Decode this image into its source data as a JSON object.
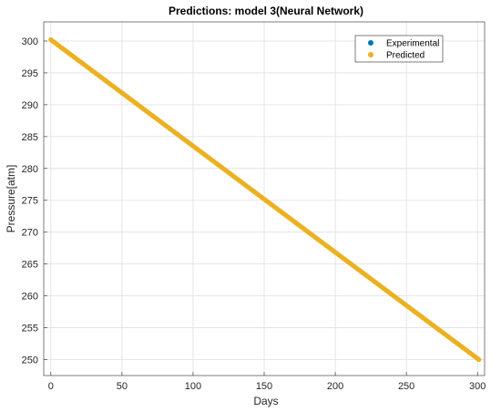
{
  "chart_data": {
    "type": "scatter",
    "title": "Predictions: model 3(Neural Network)",
    "xlabel": "Days",
    "ylabel": "Pressure[atm]",
    "xlim": [
      -5,
      305
    ],
    "ylim": [
      247.5,
      303
    ],
    "xticks": [
      0,
      50,
      100,
      150,
      200,
      250,
      300
    ],
    "yticks": [
      250,
      255,
      260,
      265,
      270,
      275,
      280,
      285,
      290,
      295,
      300
    ],
    "grid": true,
    "legend_position": "top-right",
    "series": [
      {
        "name": "Experimental",
        "color": "#0072BD",
        "x_range": [
          0,
          301
        ],
        "y_start": 300.2,
        "y_end": 250.0,
        "points": 302
      },
      {
        "name": "Predicted",
        "color": "#EDB120",
        "x_range": [
          0,
          301
        ],
        "y_start": 300.2,
        "y_end": 250.0,
        "points": 302
      }
    ]
  }
}
